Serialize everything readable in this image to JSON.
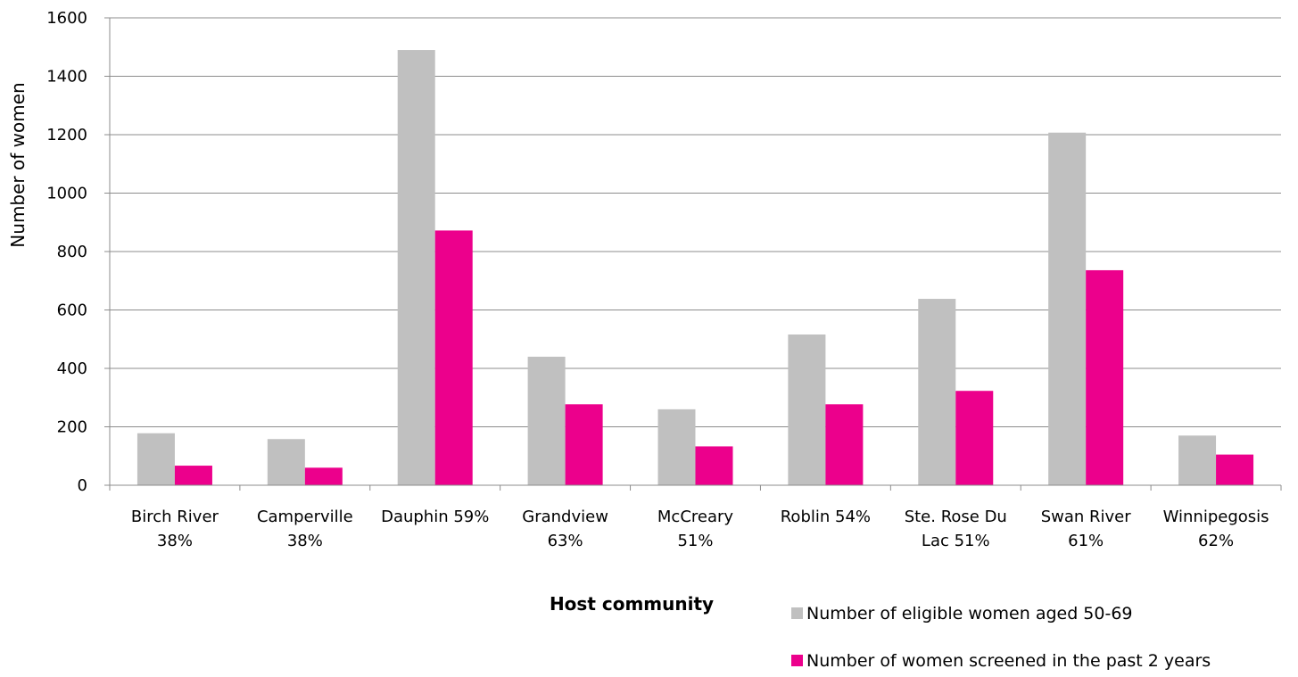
{
  "chart_data": {
    "type": "bar",
    "categories": [
      [
        "Birch River",
        "38%"
      ],
      [
        "Camperville",
        "38%"
      ],
      [
        "Dauphin 59%"
      ],
      [
        "Grandview",
        "63%"
      ],
      [
        "McCreary",
        "51%"
      ],
      [
        "Roblin 54%"
      ],
      [
        "Ste. Rose Du",
        "Lac 51%"
      ],
      [
        "Swan River",
        "61%"
      ],
      [
        "Winnipegosis",
        "62%"
      ]
    ],
    "series": [
      {
        "name": "Number of eligible women aged 50-69",
        "color": "#c0c0c0",
        "values": [
          178,
          158,
          1490,
          440,
          260,
          516,
          638,
          1207,
          170
        ]
      },
      {
        "name": "Number of women screened in the past 2 years",
        "color": "#ec008c",
        "values": [
          67,
          60,
          872,
          277,
          133,
          277,
          323,
          736,
          105
        ]
      }
    ],
    "xlabel": "Host community",
    "ylabel": "Number of women",
    "ylim": [
      0,
      1600
    ],
    "yticks": [
      0,
      200,
      400,
      600,
      800,
      1000,
      1200,
      1400,
      1600
    ],
    "grid": true,
    "legend_position": "bottom-right"
  }
}
